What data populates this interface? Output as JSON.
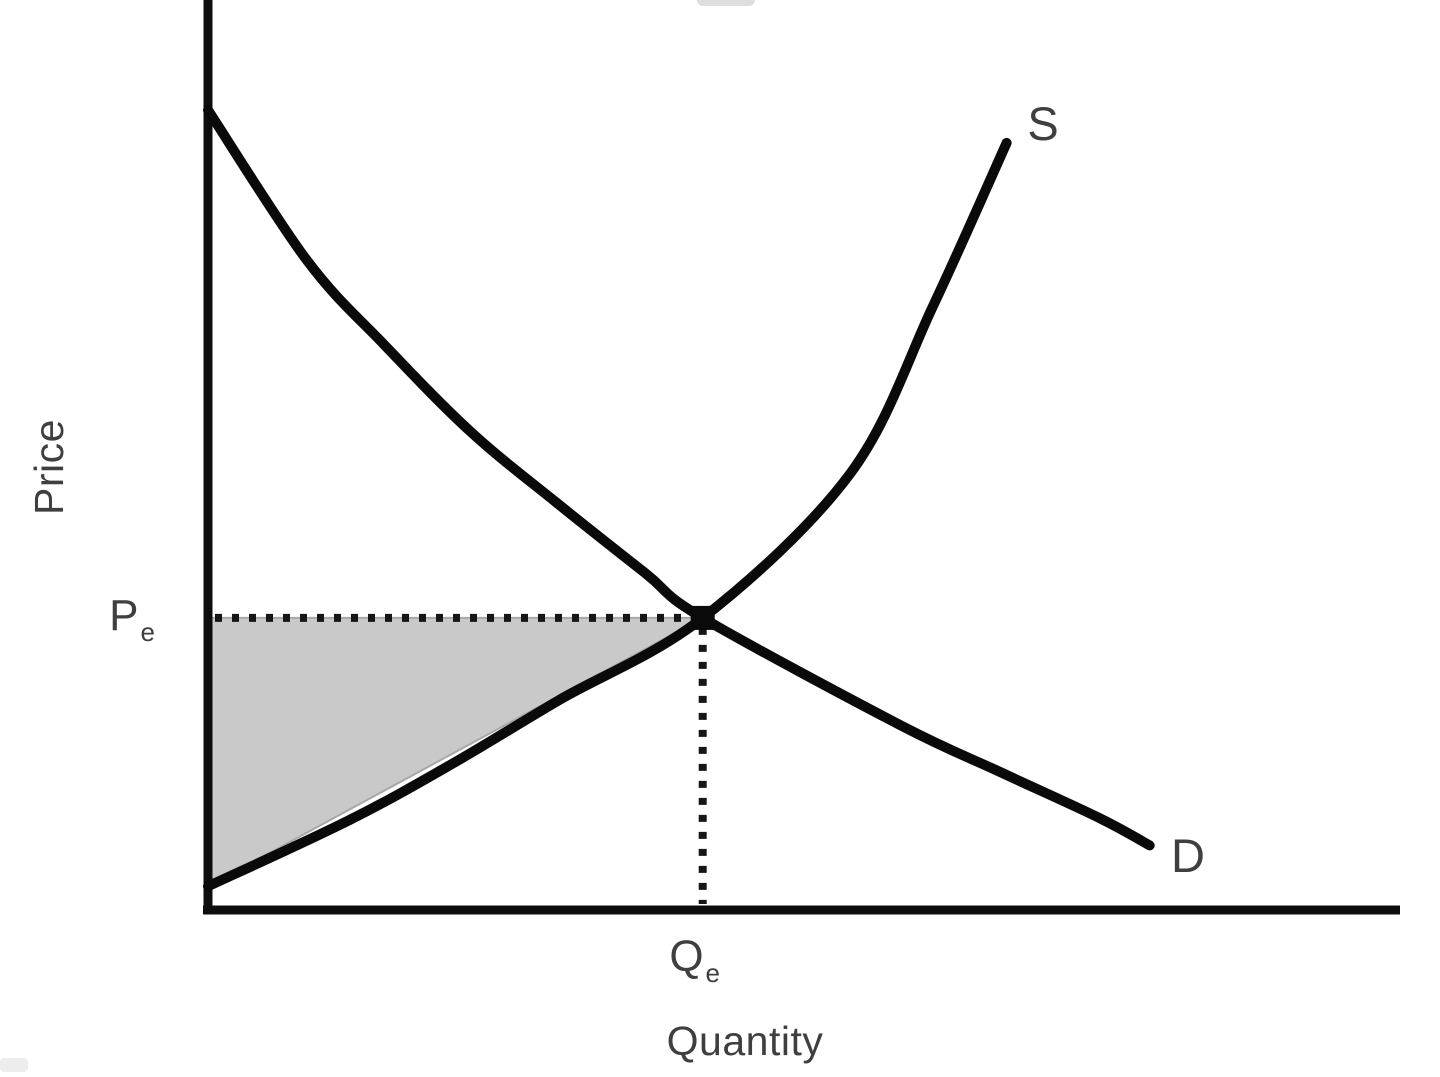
{
  "labels": {
    "y_axis": "Price",
    "x_axis": "Quantity",
    "supply": "S",
    "demand": "D",
    "equilibrium_price": {
      "base": "P",
      "sub": "e"
    },
    "equilibrium_quantity": {
      "base": "Q",
      "sub": "e"
    }
  },
  "colors": {
    "curve": "#0a0a0a",
    "axis": "#0d0d0d",
    "dotted": "#161616",
    "label": "#3f3f3f",
    "surplus_fill": "#c9c9c9",
    "surplus_edge": "#a8a8a8",
    "background": "#ffffff"
  },
  "chart_data": {
    "type": "line",
    "title": "",
    "xlabel": "Quantity",
    "ylabel": "Price",
    "grid": false,
    "legend_position": "none",
    "x_axis": {
      "range_units": [
        0,
        100
      ],
      "ticks": [
        {
          "value": 41.5,
          "label": "Qe",
          "style": "dotted-reference"
        }
      ]
    },
    "y_axis": {
      "range_units": [
        0,
        100
      ],
      "ticks": [
        {
          "value": 32.1,
          "label": "Pe",
          "style": "dotted-reference"
        }
      ]
    },
    "series": [
      {
        "name": "S",
        "role": "supply",
        "points": [
          [
            0,
            2.6
          ],
          [
            11.9,
            9.9
          ],
          [
            20.8,
            16.3
          ],
          [
            29.5,
            23.1
          ],
          [
            41.5,
            32.1
          ],
          [
            53.9,
            48.0
          ],
          [
            60.8,
            66.3
          ],
          [
            67.0,
            84.3
          ]
        ]
      },
      {
        "name": "D",
        "role": "demand",
        "points": [
          [
            0,
            87.9
          ],
          [
            8.3,
            71.4
          ],
          [
            14.8,
            62.1
          ],
          [
            22.0,
            52.6
          ],
          [
            29.2,
            44.8
          ],
          [
            36.7,
            37.0
          ],
          [
            41.5,
            32.1
          ],
          [
            58.1,
            20.3
          ],
          [
            66.4,
            15.2
          ],
          [
            74.8,
            10.1
          ],
          [
            79.0,
            7.1
          ]
        ]
      }
    ],
    "equilibrium": {
      "q": 41.5,
      "p": 32.1,
      "marker": "filled-square",
      "price_label": "Pe",
      "quantity_label": "Qe"
    },
    "shaded_region": {
      "name": "producer-surplus",
      "shape": "triangle",
      "vertices": [
        [
          0,
          32.1
        ],
        [
          41.5,
          32.1
        ],
        [
          0,
          2.6
        ]
      ]
    }
  }
}
